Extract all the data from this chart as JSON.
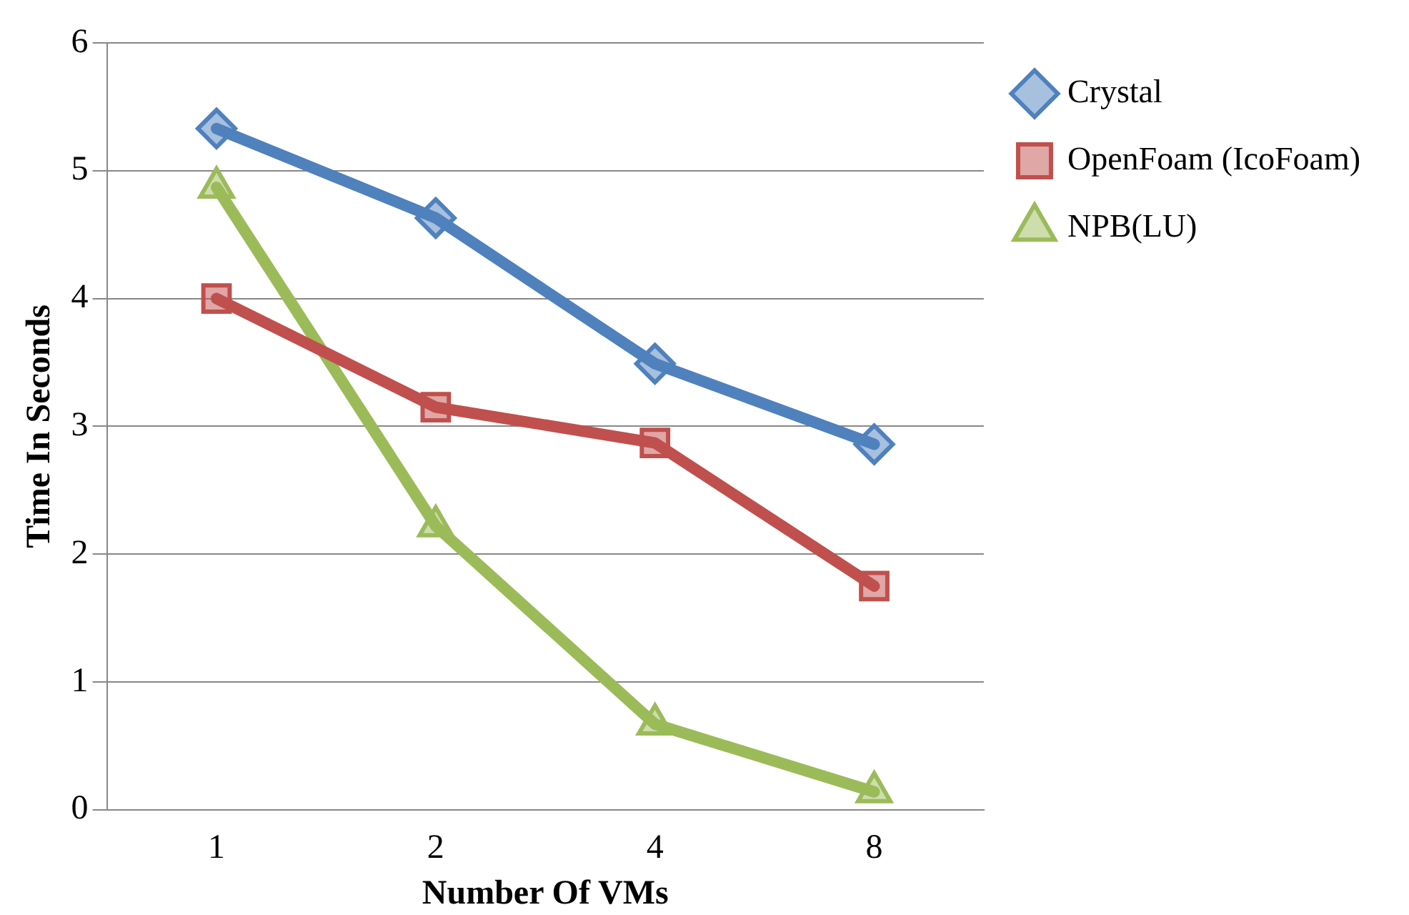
{
  "chart_data": {
    "type": "line",
    "xlabel": "Number Of VMs",
    "ylabel": "Time In Seconds",
    "categories": [
      "1",
      "2",
      "4",
      "8"
    ],
    "series": [
      {
        "name": "Crystal",
        "color": "#4f81bd",
        "marker": "diamond",
        "values": [
          5.33,
          4.63,
          3.49,
          2.86
        ]
      },
      {
        "name": "OpenFoam (IcoFoam)",
        "color": "#c0504d",
        "marker": "square",
        "values": [
          4.0,
          3.15,
          2.87,
          1.75
        ]
      },
      {
        "name": "NPB(LU)",
        "color": "#9bbb59",
        "marker": "triangle",
        "values": [
          4.87,
          2.22,
          0.67,
          0.14
        ]
      }
    ],
    "ylim": [
      0,
      6
    ],
    "yticks": [
      0,
      1,
      2,
      3,
      4,
      5,
      6
    ],
    "grid": "y",
    "legend": "right",
    "line_style": "solid"
  }
}
